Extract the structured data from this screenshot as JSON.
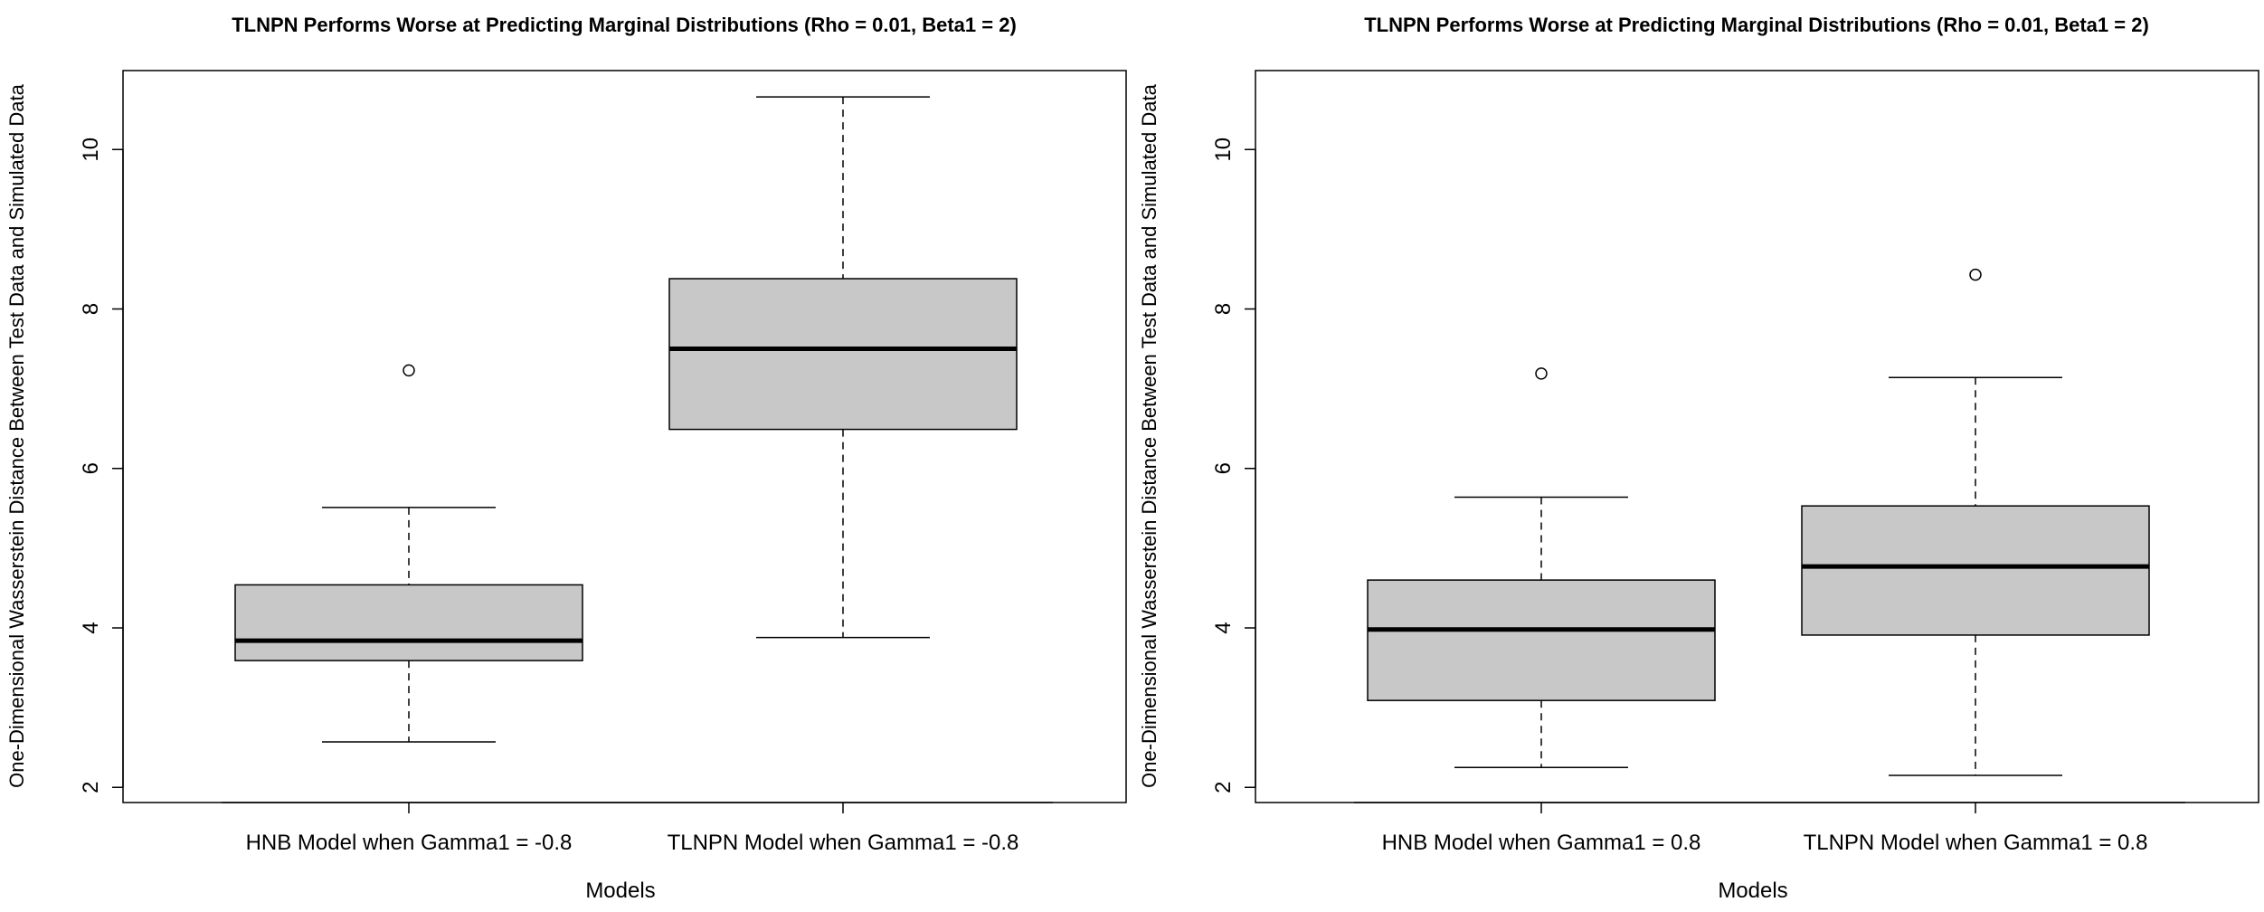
{
  "chart_data": [
    {
      "type": "boxplot",
      "title": "TLNPN Performs Worse at Predicting Marginal Distributions (Rho = 0.01, Beta1 = 2)",
      "xlabel": "Models",
      "ylabel": "One-Dimensional Wasserstein Distance Between Test Data and Simulated Data",
      "ylim": [
        1.81,
        10.99
      ],
      "yticks": [
        "2",
        "4",
        "6",
        "8",
        "10"
      ],
      "grid": false,
      "box_fill": "#c8c8c8",
      "categories": [
        "HNB Model when Gamma1 = -0.8",
        "TLNPN Model when Gamma1 = -0.8"
      ],
      "boxes": [
        {
          "whisker_low": 2.57,
          "q1": 3.59,
          "median": 3.84,
          "q3": 4.54,
          "whisker_high": 5.51,
          "outliers": [
            7.23
          ]
        },
        {
          "whisker_low": 3.88,
          "q1": 6.49,
          "median": 7.5,
          "q3": 8.38,
          "whisker_high": 10.66,
          "outliers": []
        }
      ]
    },
    {
      "type": "boxplot",
      "title": "TLNPN Performs Worse at Predicting Marginal Distributions (Rho = 0.01, Beta1 = 2)",
      "xlabel": "Models",
      "ylabel": "One-Dimensional Wasserstein Distance Between Test Data and Simulated Data",
      "ylim": [
        1.81,
        10.99
      ],
      "yticks": [
        "2",
        "4",
        "6",
        "8",
        "10"
      ],
      "grid": false,
      "box_fill": "#c8c8c8",
      "categories": [
        "HNB Model when Gamma1 = 0.8",
        "TLNPN Model when Gamma1 = 0.8"
      ],
      "boxes": [
        {
          "whisker_low": 2.25,
          "q1": 3.09,
          "median": 3.98,
          "q3": 4.6,
          "whisker_high": 5.64,
          "outliers": [
            7.19
          ]
        },
        {
          "whisker_low": 2.15,
          "q1": 3.91,
          "median": 4.77,
          "q3": 5.53,
          "whisker_high": 7.14,
          "outliers": [
            8.43
          ]
        }
      ]
    }
  ]
}
